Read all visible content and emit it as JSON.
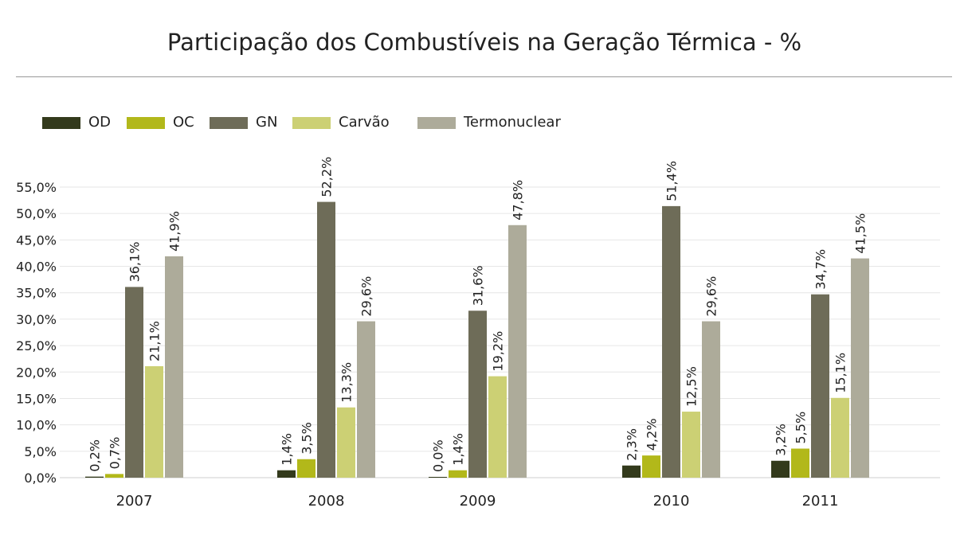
{
  "chart_data": {
    "type": "bar",
    "title": "Participação dos Combustíveis na Geração Térmica - %",
    "categories": [
      "2007",
      "2008",
      "2009",
      "2010",
      "2011"
    ],
    "series": [
      {
        "name": "OD",
        "color": "#333a1c",
        "values": [
          0.2,
          1.4,
          0.0,
          2.3,
          3.2
        ],
        "labels": [
          "0,2%",
          "1,4%",
          "0,0%",
          "2,3%",
          "3,2%"
        ]
      },
      {
        "name": "OC",
        "color": "#b2b81a",
        "values": [
          0.7,
          3.5,
          1.4,
          4.2,
          5.5
        ],
        "labels": [
          "0,7%",
          "3,5%",
          "1,4%",
          "4,2%",
          "5,5%"
        ]
      },
      {
        "name": "GN",
        "color": "#6e6c58",
        "values": [
          36.1,
          52.2,
          31.6,
          51.4,
          34.7
        ],
        "labels": [
          "36,1%",
          "52,2%",
          "31,6%",
          "51,4%",
          "34,7%"
        ]
      },
      {
        "name": "Carvão",
        "color": "#ccd074",
        "values": [
          21.1,
          13.3,
          19.2,
          12.5,
          15.1
        ],
        "labels": [
          "21,1%",
          "13,3%",
          "19,2%",
          "12,5%",
          "15,1%"
        ]
      },
      {
        "name": "Termonuclear",
        "color": "#adab9a",
        "values": [
          41.9,
          29.6,
          47.8,
          29.6,
          41.5
        ],
        "labels": [
          "41,9%",
          "29,6%",
          "47,8%",
          "29,6%",
          "41,5%"
        ]
      }
    ],
    "yticks": [
      0,
      5,
      10,
      15,
      20,
      25,
      30,
      35,
      40,
      45,
      50,
      55
    ],
    "ytick_labels": [
      "0,0%",
      "5,0%",
      "10,0%",
      "15,0%",
      "20,0%",
      "25,0%",
      "30,0%",
      "35,0%",
      "40,0%",
      "45,0%",
      "50,0%",
      "55,0%"
    ],
    "ylim": [
      0,
      55
    ],
    "xlabel": "",
    "ylabel": "",
    "grid": true,
    "legend_position": "top-left",
    "data_labels_rotated": true
  }
}
